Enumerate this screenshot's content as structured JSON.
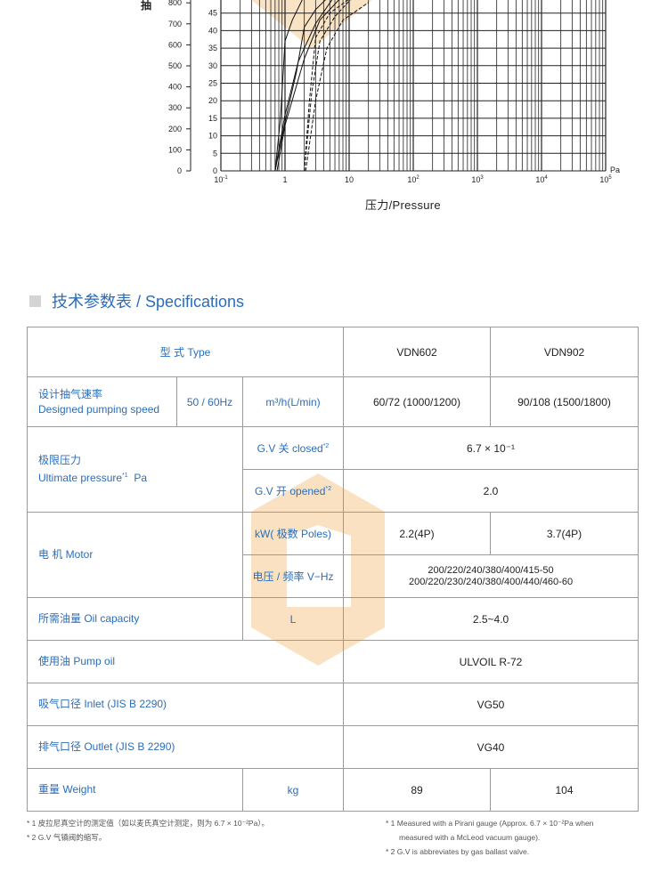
{
  "chart_data": {
    "type": "line",
    "xlabel": "压力/Pressure",
    "x_unit": "Pa",
    "x_scale": "log",
    "xlim": [
      0.1,
      100000
    ],
    "x_ticks": [
      "10-1",
      "1",
      "10",
      "102",
      "103",
      "104",
      "105"
    ],
    "ylabel_partial": "抽",
    "y_left_ticks": [
      "0",
      "100",
      "200",
      "300",
      "400",
      "500",
      "600",
      "700",
      "800"
    ],
    "y_right_ticks": [
      "0",
      "5",
      "10",
      "15",
      "20",
      "25",
      "30",
      "35",
      "40",
      "45"
    ],
    "ylim_right": [
      0,
      50
    ],
    "grid": true,
    "series": [
      {
        "style": "solid",
        "points": [
          [
            0.7,
            0
          ],
          [
            0.85,
            15
          ],
          [
            1,
            37
          ],
          [
            1.3,
            43
          ],
          [
            2,
            50
          ]
        ]
      },
      {
        "style": "solid",
        "points": [
          [
            0.7,
            0
          ],
          [
            1,
            14
          ],
          [
            1.5,
            28
          ],
          [
            2,
            41
          ],
          [
            3,
            46
          ],
          [
            5,
            50
          ]
        ]
      },
      {
        "style": "solid",
        "points": [
          [
            0.7,
            0
          ],
          [
            1,
            16
          ],
          [
            1.6,
            31
          ],
          [
            2,
            35
          ],
          [
            3,
            42
          ],
          [
            6,
            50
          ]
        ]
      },
      {
        "style": "solid",
        "points": [
          [
            0.75,
            0
          ],
          [
            1,
            13
          ],
          [
            2,
            32
          ],
          [
            3.5,
            43
          ],
          [
            8,
            50
          ]
        ]
      },
      {
        "style": "dashed",
        "points": [
          [
            2,
            0
          ],
          [
            2.4,
            20
          ],
          [
            3,
            38
          ],
          [
            5,
            45
          ],
          [
            10,
            49
          ],
          [
            25,
            50
          ]
        ]
      },
      {
        "style": "dashed",
        "points": [
          [
            2,
            0
          ],
          [
            2.6,
            22
          ],
          [
            3.5,
            37
          ],
          [
            6,
            44
          ],
          [
            12,
            50
          ]
        ]
      },
      {
        "style": "dashed",
        "points": [
          [
            2.1,
            0
          ],
          [
            3,
            20
          ],
          [
            4.5,
            35
          ],
          [
            8,
            43
          ],
          [
            20,
            48
          ]
        ]
      }
    ]
  },
  "section_title": "技术参数表 / Specifications",
  "table": {
    "type_label": "型 式 Type",
    "models": [
      "VDN602",
      "VDN902"
    ],
    "speed": {
      "label_cn": "设计抽气速率",
      "label_en": "Designed pumping speed",
      "freq": "50 / 60Hz",
      "unit": "m³/h(L/min)",
      "values": [
        "60/72 (1000/1200)",
        "90/108 (1500/1800)"
      ]
    },
    "ultimate": {
      "label_cn": "极限压力",
      "label_en": "Ultimate pressure",
      "note": "*1",
      "unit": "Pa",
      "closed_label": "G.V 关 closed",
      "closed_note": "*2",
      "closed_value": "6.7 × 10⁻¹",
      "opened_label": "G.V 开 opened",
      "opened_note": "*2",
      "opened_value": "2.0"
    },
    "motor": {
      "label": "电  机 Motor",
      "kw_label": "kW( 极数 Poles)",
      "kw_values": [
        "2.2(4P)",
        "3.7(4P)"
      ],
      "v_label": "电压 / 频率 V−Hz",
      "v_line1": "200/220/240/380/400/415-50",
      "v_line2": "200/220/230/240/380/400/440/460-60"
    },
    "oil_capacity": {
      "label": "所需油量 Oil capacity",
      "unit": "L",
      "value": "2.5~4.0"
    },
    "pump_oil": {
      "label": "使用油 Pump oil",
      "value": "ULVOIL R-72"
    },
    "inlet": {
      "label": "吸气口径 Inlet (JIS B 2290)",
      "value": "VG50"
    },
    "outlet": {
      "label": "排气口径 Outlet (JIS B 2290)",
      "value": "VG40"
    },
    "weight": {
      "label": "重量 Weight",
      "unit": "kg",
      "values": [
        "89",
        "104"
      ]
    }
  },
  "footnotes_cn": [
    "* 1  皮拉尼真空计的测定值（如以麦氏真空计测定，则为 6.7 × 10⁻²Pa）。",
    "* 2  G.V 气镇阀的缩写。"
  ],
  "footnotes_en": [
    "* 1  Measured with a Pirani gauge (Approx. 6.7 × 10⁻²Pa when",
    "measured with a McLeod vacuum gauge).",
    "* 2  G.V is abbreviates by gas ballast valve."
  ],
  "colors": {
    "accent": "#2a6ebb",
    "watermark": "#f6c98f",
    "border": "#9a9a9a"
  }
}
